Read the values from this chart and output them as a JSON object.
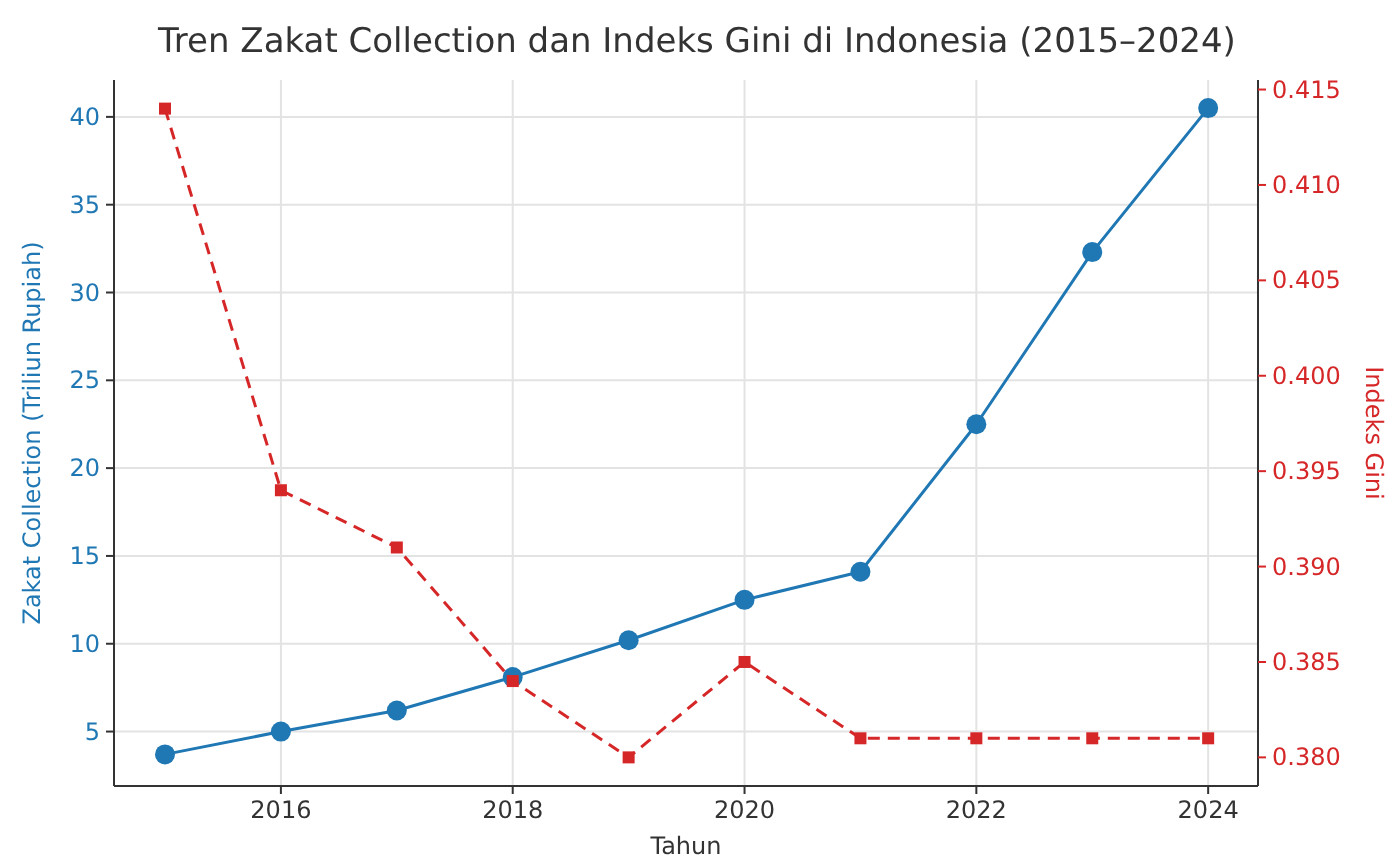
{
  "chart_data": {
    "type": "line",
    "title": "Tren Zakat Collection dan Indeks Gini di Indonesia (2015–2024)",
    "xlabel": "Tahun",
    "ylabel": "Zakat Collection (Triliun Rupiah)",
    "y2label": "Indeks Gini",
    "x": [
      2015,
      2016,
      2017,
      2018,
      2019,
      2020,
      2021,
      2022,
      2023,
      2024
    ],
    "xlim": [
      2014.56,
      2024.43
    ],
    "xticks": [
      2016,
      2018,
      2020,
      2022,
      2024
    ],
    "ylim": [
      1.9,
      42.1
    ],
    "yticks": [
      5,
      10,
      15,
      20,
      25,
      30,
      35,
      40
    ],
    "y2lim": [
      0.3785,
      0.4155
    ],
    "y2ticks": [
      {
        "value": 0.38,
        "label": "0.380"
      },
      {
        "value": 0.385,
        "label": "0.385"
      },
      {
        "value": 0.39,
        "label": "0.390"
      },
      {
        "value": 0.395,
        "label": "0.395"
      },
      {
        "value": 0.4,
        "label": "0.400"
      },
      {
        "value": 0.405,
        "label": "0.405"
      },
      {
        "value": 0.41,
        "label": "0.410"
      },
      {
        "value": 0.415,
        "label": "0.415"
      }
    ],
    "grid": true,
    "series": [
      {
        "color": "#1f77b4",
        "marker": "circle",
        "line_style": "solid",
        "values": [
          3.7,
          5.0,
          6.2,
          8.1,
          10.2,
          12.5,
          14.1,
          22.5,
          32.3,
          40.5
        ]
      },
      {
        "color": "#d62728",
        "marker": "square",
        "line_style": "dashed",
        "axis": "y2",
        "values": [
          0.414,
          0.394,
          0.391,
          0.384,
          0.38,
          0.385,
          0.381,
          0.381,
          0.381,
          0.381
        ]
      }
    ]
  }
}
